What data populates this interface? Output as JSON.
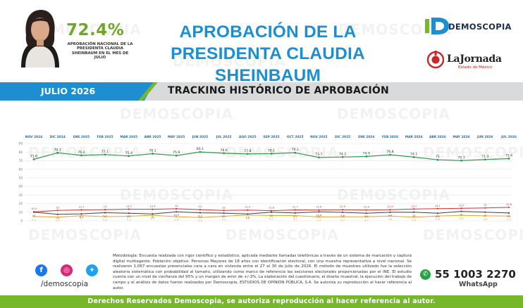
{
  "header": {
    "approval_pct": "72.4%",
    "approval_caption": "APROBACIÓN NACIONAL DE LA PRESIDENTA CLAUDIA SHEINBAUM EN EL MES DE JULIO",
    "title_line1": "APROBACIÓN DE LA",
    "title_line2": "PRESIDENTA CLAUDIA SHEINBAUM",
    "logo_name": "DEMOSCOPIA",
    "partner_name": "LaJornada",
    "partner_sub": "Estado de México"
  },
  "band": {
    "period": "JULIO 2026",
    "title": "TRACKING HISTÓRICO DE APROBACIÓN"
  },
  "watermark": "DEMOSCOPIA",
  "colors": {
    "blue": "#1d8fd0",
    "green": "#76b82a",
    "approval_line": "#2e9a4a",
    "line_red": "#d32f2f",
    "line_gray": "#444444",
    "line_orange": "#f0a020"
  },
  "chart_data": {
    "type": "line",
    "categories": [
      "NOV 2024",
      "DIC 2024",
      "ENE 2025",
      "FEB 2025",
      "MAR 2025",
      "ABR 2025",
      "MAY 2025",
      "JUN 2025",
      "JUL 2025",
      "AGO 2025",
      "SEP 2025",
      "OCT 2025",
      "NOV 2025",
      "DIC 2025",
      "ENE 2026",
      "FEB 2026",
      "MAR 2026",
      "ABR 2026",
      "MAY 2026",
      "JUN 2026",
      "JUL 2026"
    ],
    "yticks": [
      0,
      10,
      20,
      30,
      40,
      50,
      60,
      70,
      80,
      90
    ],
    "ylim": [
      0,
      90
    ],
    "grid": true,
    "series": [
      {
        "color": "#2e9a4a",
        "values": [
          71.6,
          79.1,
          76.2,
          77.1,
          75.4,
          78.1,
          75.9,
          80.1,
          78.6,
          77.8,
          78.1,
          79.2,
          73.7,
          74.2,
          74.9,
          76.8,
          74.1,
          71,
          70.1,
          71.3,
          72.4
        ]
      },
      {
        "color": "#d32f2f",
        "values": [
          10.5,
          12,
          12.7,
          13,
          13.5,
          13.4,
          14,
          13,
          12,
          12.5,
          11.8,
          12.7,
          12.6,
          12.9,
          12.6,
          12.9,
          13.7,
          14.1,
          14.5,
          15,
          15.6
        ]
      },
      {
        "color": "#444444",
        "values": [
          10,
          7.5,
          8.1,
          9.4,
          8.8,
          8,
          10.5,
          9.3,
          8.9,
          7.9,
          10,
          9.1,
          10.4,
          9.8,
          8.8,
          9.9,
          10,
          8.8,
          11,
          10,
          9.1
        ]
      },
      {
        "color": "#f0a020",
        "values": [
          5.1,
          4.3,
          6,
          4.8,
          5.3,
          6.5,
          4.8,
          3.9,
          5.3,
          6.8,
          6.1,
          6.1,
          4.5,
          4.7,
          4.7,
          5.6,
          4.3,
          5.6,
          6.4,
          5.8,
          5.5
        ]
      }
    ]
  },
  "methodology": "Metodología: Encuesta realizada con rigor científico y estadístico, aplicada mediante llamadas telefónicas a través de un sistema de marcación y captura digital multiagente. Población objetivo: Personas Mayores de 18 años con identificación electoral, con una muestra representativa a nivel nacional. Se realizaron 1,067 encuestas presenciales cara a cara en vivienda entre el 27 al 30 de Julio de 2026. El método de muestreo utilizado fue la selección aleatoria sistemática con probabilidad al tamaño, utilizando como marco de referencia las secciones electorales proporcionadas por el INE. El estudio cuenta con un nivel de confianza del 95% y un margen de error de +/-3%. La elaboración del cuestionario, el diseño muestral, la ejecución del trabajo de campo y el análisis de datos fueron realizados por Demoscopia, ESTUDIOS DE OPINIÓN PÚBLICA, S.A. Se autoriza su reproducción al hacer referencia al autor.",
  "social": {
    "handle": "/demoscopia",
    "icons": [
      "facebook-icon",
      "instagram-icon",
      "twitter-icon"
    ]
  },
  "contact": {
    "phone": "55 1003 2270",
    "whatsapp_label": "WhatsApp"
  },
  "footer": "Derechos Reservados Demoscopia, se autoriza reproducción al hacer referencia al autor."
}
